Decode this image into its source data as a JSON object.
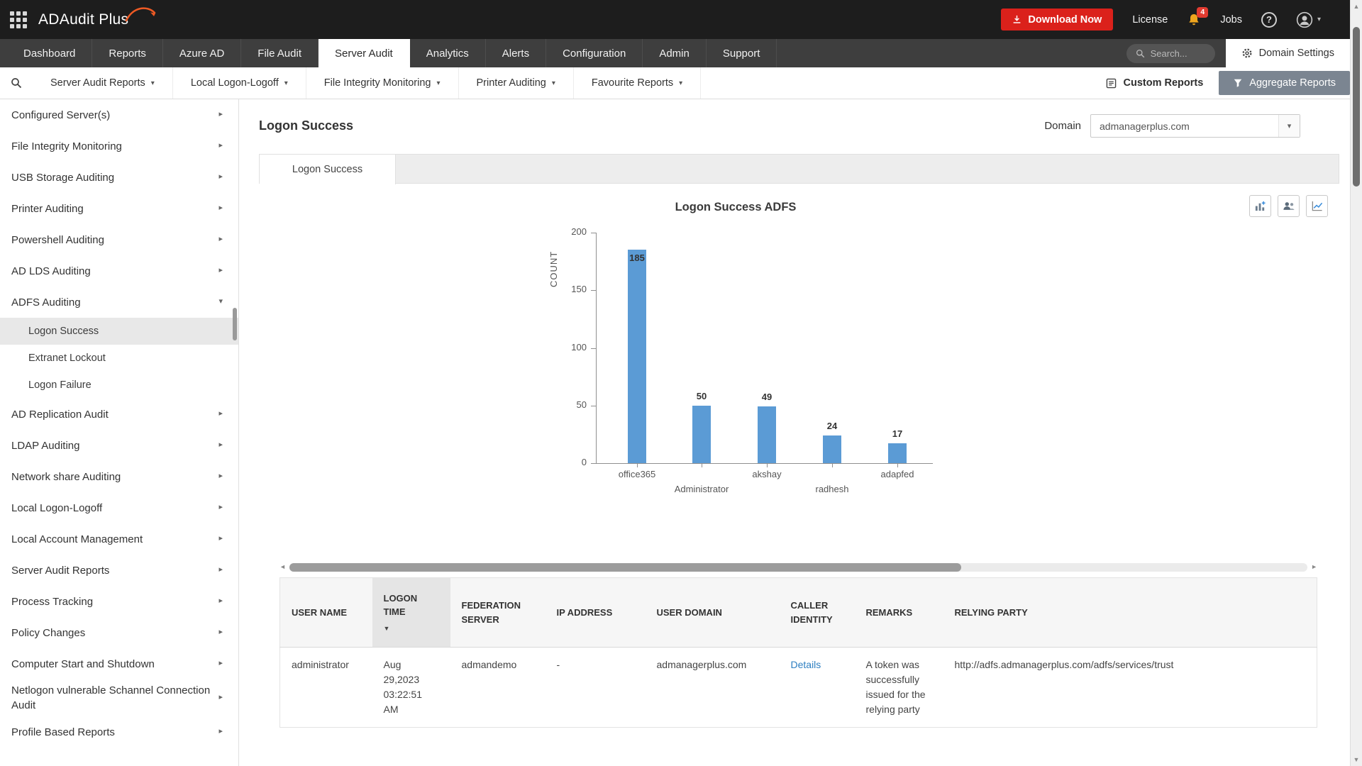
{
  "header": {
    "app_name": "ADAudit Plus",
    "download_button": "Download Now",
    "license_label": "License",
    "notification_count": "4",
    "jobs_label": "Jobs",
    "help_label": "?"
  },
  "nav": {
    "tabs": [
      {
        "label": "Dashboard",
        "active": false
      },
      {
        "label": "Reports",
        "active": false
      },
      {
        "label": "Azure AD",
        "active": false
      },
      {
        "label": "File Audit",
        "active": false
      },
      {
        "label": "Server Audit",
        "active": true
      },
      {
        "label": "Analytics",
        "active": false
      },
      {
        "label": "Alerts",
        "active": false
      },
      {
        "label": "Configuration",
        "active": false
      },
      {
        "label": "Admin",
        "active": false
      },
      {
        "label": "Support",
        "active": false
      }
    ],
    "search_placeholder": "Search...",
    "domain_settings_label": "Domain Settings"
  },
  "submenu": {
    "items": [
      "Server Audit Reports",
      "Local Logon-Logoff",
      "File Integrity Monitoring",
      "Printer Auditing",
      "Favourite Reports"
    ],
    "custom_reports_label": "Custom Reports",
    "aggregate_reports_label": "Aggregate Reports"
  },
  "sidebar": {
    "items": [
      {
        "label": "Configured Server(s)"
      },
      {
        "label": "File Integrity Monitoring"
      },
      {
        "label": "USB Storage Auditing"
      },
      {
        "label": "Printer Auditing"
      },
      {
        "label": "Powershell Auditing"
      },
      {
        "label": "AD LDS Auditing"
      },
      {
        "label": "ADFS Auditing",
        "expanded": true,
        "children": [
          {
            "label": "Logon Success",
            "selected": true
          },
          {
            "label": "Extranet Lockout",
            "selected": false
          },
          {
            "label": "Logon Failure",
            "selected": false
          }
        ]
      },
      {
        "label": "AD Replication Audit"
      },
      {
        "label": "LDAP Auditing"
      },
      {
        "label": "Network share Auditing"
      },
      {
        "label": "Local Logon-Logoff"
      },
      {
        "label": "Local Account Management"
      },
      {
        "label": "Server Audit Reports"
      },
      {
        "label": "Process Tracking"
      },
      {
        "label": "Policy Changes"
      },
      {
        "label": "Computer Start and Shutdown"
      },
      {
        "label": "Netlogon vulnerable Schannel Connection Audit"
      },
      {
        "label": "Profile Based Reports"
      }
    ]
  },
  "main": {
    "page_title": "Logon Success",
    "domain_label": "Domain",
    "domain_value": "admanagerplus.com",
    "report_tab": "Logon Success"
  },
  "chart_data": {
    "type": "bar",
    "title": "Logon Success ADFS",
    "ylabel": "COUNT",
    "xlabel": "",
    "categories": [
      "office365",
      "Administrator",
      "akshay",
      "radhesh",
      "adapfed"
    ],
    "values": [
      185,
      50,
      49,
      24,
      17
    ],
    "ylim": [
      0,
      200
    ],
    "yticks": [
      0,
      50,
      100,
      150,
      200
    ],
    "bar_color": "#5b9bd5",
    "grid": false,
    "legend": "none"
  },
  "table": {
    "headers": [
      {
        "label": "USER NAME",
        "sorted": false
      },
      {
        "label": "LOGON TIME",
        "sorted": true
      },
      {
        "label": "FEDERATION SERVER",
        "sorted": false
      },
      {
        "label": "IP ADDRESS",
        "sorted": false
      },
      {
        "label": "USER DOMAIN",
        "sorted": false
      },
      {
        "label": "CALLER IDENTITY",
        "sorted": false
      },
      {
        "label": "REMARKS",
        "sorted": false
      },
      {
        "label": "RELYING PARTY",
        "sorted": false
      }
    ],
    "rows": [
      [
        "administrator",
        "Aug 29,2023 03:22:51 AM",
        "admandemo",
        "-",
        "admanagerplus.com",
        "Details",
        "A token was successfully issued for the relying party",
        "http://adfs.admanagerplus.com/adfs/services/trust"
      ]
    ]
  },
  "icons": {
    "chevron_down": "▾",
    "chevron_right": "▸",
    "sort_desc": "▼",
    "scroll_left": "◄",
    "scroll_right": "►",
    "scroll_up": "▲",
    "scroll_down": "▼"
  },
  "colors": {
    "topbar": "#1d1d1d",
    "navbar": "#3e3e3e",
    "download_button": "#db211b",
    "aggregate_button": "#7b8591",
    "bar": "#5b9bd5",
    "link": "#2d7fc1"
  }
}
